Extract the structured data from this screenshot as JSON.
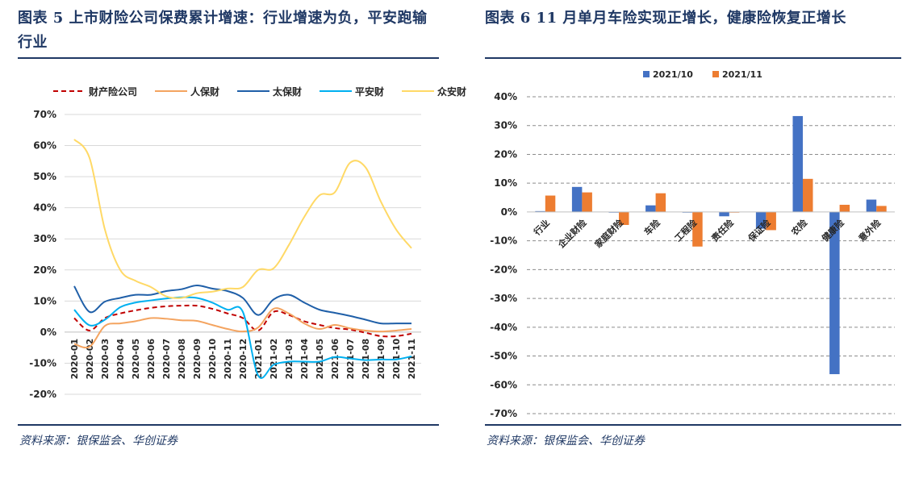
{
  "left": {
    "title": "图表 5 上市财险公司保费累计增速：行业增速为负，平安跑输行业",
    "source": "资料来源：银保监会、华创证券"
  },
  "right": {
    "title": "图表 6 11 月单月车险实现正增长，健康险恢复正增长",
    "source": "资料来源：银保监会、华创证券"
  },
  "chart_data": [
    {
      "type": "line",
      "ylim": [
        -20,
        70
      ],
      "yticks": [
        -20,
        -10,
        0,
        10,
        20,
        30,
        40,
        50,
        60,
        70
      ],
      "ytick_format": "percent",
      "grid": true,
      "legend": "top",
      "categories": [
        "2020-01",
        "2020-02",
        "2020-03",
        "2020-04",
        "2020-05",
        "2020-06",
        "2020-07",
        "2020-08",
        "2020-09",
        "2020-10",
        "2020-11",
        "2020-12",
        "2021-01",
        "2021-02",
        "2021-03",
        "2021-04",
        "2021-05",
        "2021-06",
        "2021-07",
        "2021-08",
        "2021-09",
        "2021-10",
        "2021-11"
      ],
      "series": [
        {
          "name": "财产险公司",
          "color": "#c00000",
          "dash": true,
          "values": [
            4.5,
            0.5,
            4.5,
            6,
            7,
            7.8,
            8.3,
            8.5,
            8.5,
            7.5,
            6,
            4.5,
            0.5,
            6.5,
            5.5,
            3.5,
            2.3,
            1.3,
            0.8,
            -0.2,
            -1.3,
            -1.3,
            -0.5
          ]
        },
        {
          "name": "人保财",
          "color": "#f4a460",
          "dash": false,
          "values": [
            -3.8,
            -4.7,
            2,
            2.8,
            3.5,
            4.5,
            4.3,
            3.8,
            3.6,
            2.3,
            1,
            0.2,
            1.5,
            7.5,
            6,
            2.8,
            1,
            2.3,
            1.2,
            0.5,
            0.2,
            0.5,
            1
          ]
        },
        {
          "name": "太保财",
          "color": "#1f5fa8",
          "dash": false,
          "values": [
            14.8,
            6.5,
            9.8,
            11,
            12,
            12,
            13.2,
            13.8,
            15,
            14,
            13.2,
            11,
            5.5,
            10.5,
            12,
            9.5,
            7.2,
            6.2,
            5.2,
            4,
            2.8,
            2.8,
            2.8
          ]
        },
        {
          "name": "平安财",
          "color": "#00b0f0",
          "dash": false,
          "values": [
            7.2,
            2.2,
            4,
            8,
            9.5,
            10.2,
            10.8,
            11.2,
            11,
            9.5,
            7.2,
            6.5,
            -14,
            -10.5,
            -9.5,
            -9.5,
            -9.5,
            -8,
            -8.5,
            -9,
            -8.8,
            -8.8,
            -7.8
          ]
        },
        {
          "name": "众安财",
          "color": "#ffd966",
          "dash": false,
          "values": [
            62,
            56,
            33,
            20,
            16.5,
            14.5,
            11.5,
            11,
            12.5,
            13,
            14,
            14.5,
            20,
            20.5,
            28,
            37,
            44,
            45,
            54.5,
            53,
            42,
            33,
            27
          ]
        }
      ]
    },
    {
      "type": "bar",
      "ylim": [
        -70,
        40
      ],
      "yticks": [
        -70,
        -60,
        -50,
        -40,
        -30,
        -20,
        -10,
        0,
        10,
        20,
        30,
        40
      ],
      "ytick_format": "percent",
      "grid": true,
      "legend": "top",
      "categories": [
        "行业",
        "企业财险",
        "家庭财险",
        "车险",
        "工程险",
        "责任险",
        "保证险",
        "农险",
        "健康险",
        "意外险"
      ],
      "series": [
        {
          "name": "2021/10",
          "color": "#4472c4",
          "values": [
            0.3,
            8.7,
            0.0,
            2.3,
            0.0,
            -1.5,
            -5.8,
            33.3,
            -56.3,
            4.3
          ]
        },
        {
          "name": "2021/11",
          "color": "#ed7d31",
          "values": [
            5.7,
            6.8,
            -4.5,
            6.5,
            -12,
            0.0,
            -6.3,
            11.5,
            2.5,
            2.1
          ]
        }
      ]
    }
  ]
}
